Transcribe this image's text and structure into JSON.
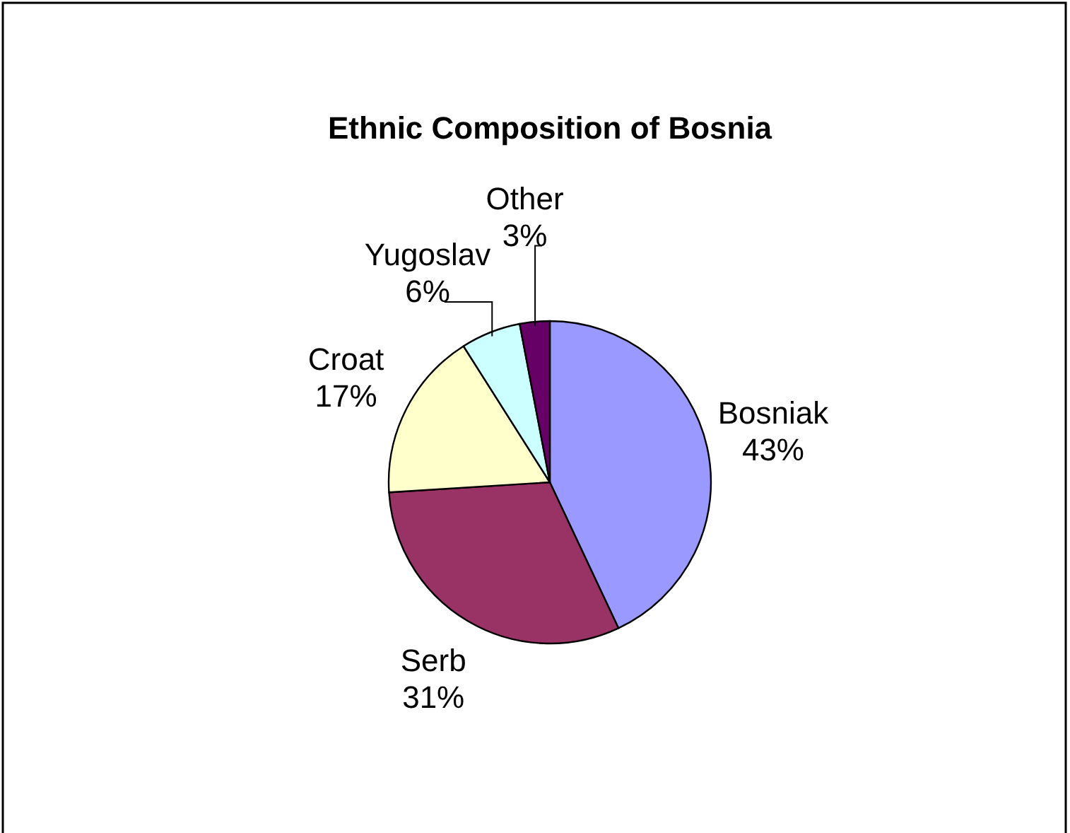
{
  "chart_data": {
    "type": "pie",
    "title": "Ethnic Composition of Bosnia",
    "categories": [
      "Bosniak",
      "Serb",
      "Croat",
      "Yugoslav",
      "Other"
    ],
    "values": [
      43,
      31,
      17,
      6,
      3
    ],
    "value_labels": [
      "43%",
      "31%",
      "17%",
      "6%",
      "3%"
    ],
    "colors": [
      "#9999ff",
      "#993366",
      "#ffffcc",
      "#ccffff",
      "#660066"
    ]
  }
}
